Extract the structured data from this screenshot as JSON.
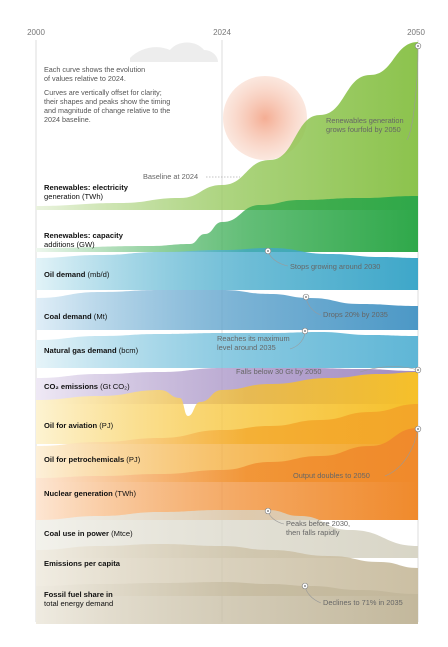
{
  "chart_data": {
    "type": "area",
    "x_ticks": [
      "2000",
      "2024",
      "2050"
    ],
    "intro": [
      "Each curve shows the evolution",
      "of values relative to 2024.",
      "Curves are vertically offset for clarity;",
      "their shapes and peaks show the timing",
      "and magnitude of change relative to the",
      "2024 baseline."
    ],
    "baseline_label": "Baseline at 2024",
    "series": [
      {
        "bold": "Renewables: electricity",
        "lines": [
          "generation (TWh)"
        ],
        "unit": "",
        "color": "#8cc34d"
      },
      {
        "bold": "Renewables: capacity",
        "lines": [
          "additions (GW)"
        ],
        "unit": "",
        "color": "#2fa84a"
      },
      {
        "bold": "Oil demand",
        "unit": "(mb/d)",
        "lines": [],
        "color": "#3ea7c9"
      },
      {
        "bold": "Coal demand",
        "unit": "(Mt)",
        "lines": [],
        "color": "#4c98c6"
      },
      {
        "bold": "Natural gas demand",
        "unit": "(bcm)",
        "lines": [],
        "color": "#5fb6d6"
      },
      {
        "bold": "CO₂ emissions",
        "unit": "(Gt CO₂)",
        "lines": [],
        "color": "#a28cc2"
      },
      {
        "bold": "Oil for aviation",
        "unit": "(PJ)",
        "lines": [],
        "color": "#f6c02a"
      },
      {
        "bold": "Oil for petrochemicals",
        "unit": "(PJ)",
        "lines": [],
        "color": "#f3a629"
      },
      {
        "bold": "Nuclear generation",
        "unit": "(TWh)",
        "lines": [],
        "color": "#f08a2c"
      },
      {
        "bold": "Coal use in power",
        "unit": "(Mtce)",
        "lines": [],
        "color": "#d8d5c6"
      },
      {
        "bold": "Emissions per capita",
        "unit": "",
        "lines": [],
        "color": "#cbbfa3"
      },
      {
        "bold": "Fossil fuel share in",
        "lines": [
          "total energy demand"
        ],
        "unit": "",
        "color": "#c3b89c"
      }
    ],
    "annotations": [
      {
        "lines": [
          "Renewables generation",
          "grows fourfold by 2050"
        ]
      },
      {
        "lines": [
          "Stops growing around 2030"
        ]
      },
      {
        "lines": [
          "Drops 20% by 2035"
        ]
      },
      {
        "lines": [
          "Reaches its maximum",
          "level around 2035"
        ]
      },
      {
        "lines": [
          "Falls below 30 Gt by 2050"
        ]
      },
      {
        "lines": [
          "Output doubles to 2050"
        ]
      },
      {
        "lines": [
          "Peaks before 2030,",
          "then falls rapidly"
        ]
      },
      {
        "lines": [
          "Declines to 71% in 2035"
        ]
      }
    ]
  }
}
